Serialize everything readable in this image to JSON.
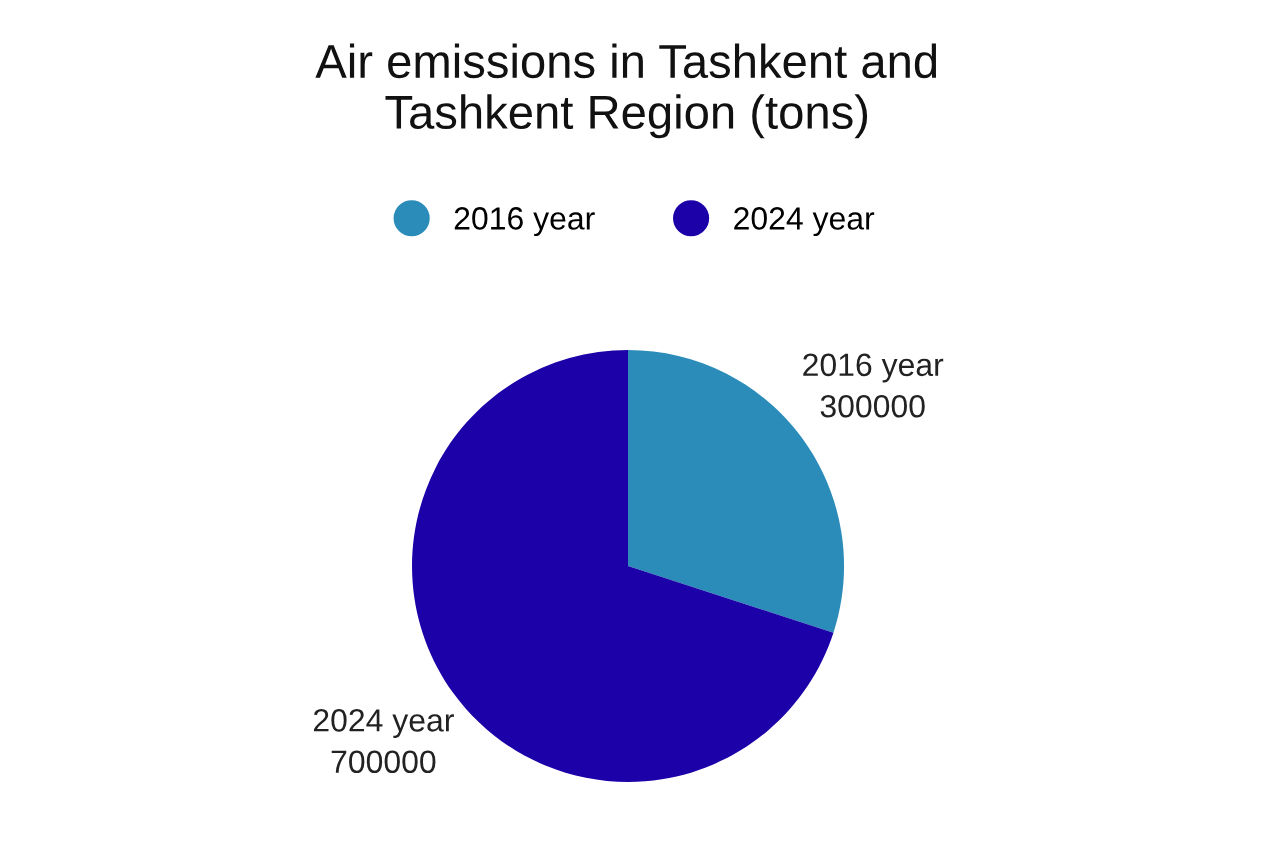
{
  "chart_data": {
    "type": "pie",
    "title": "Air emissions in Tashkent and\nTashkent Region (tons)",
    "categories": [
      "2016 year",
      "2024 year"
    ],
    "values": [
      300000,
      700000
    ],
    "colors": [
      "#2b8cba",
      "#1c00a8"
    ],
    "legend": "top",
    "data_labels": true
  }
}
